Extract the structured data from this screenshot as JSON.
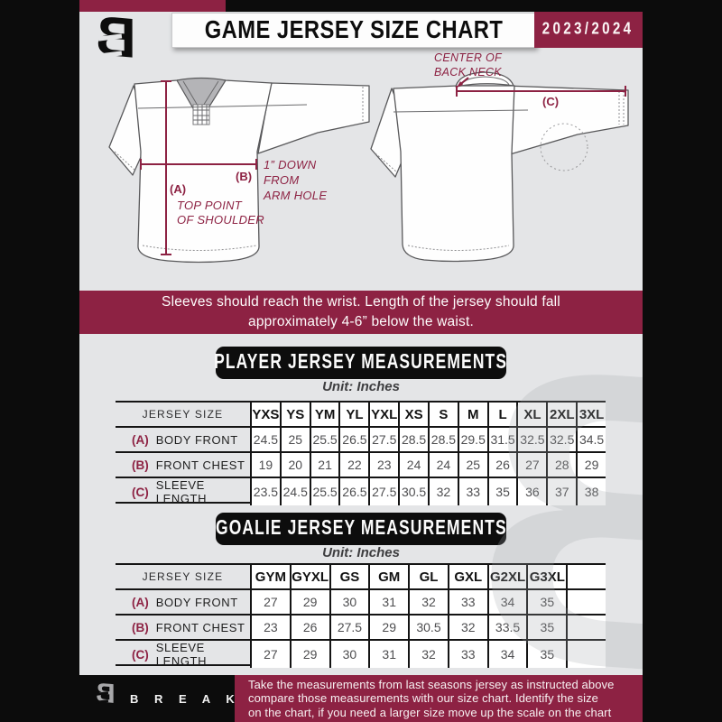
{
  "header": {
    "title": "GAME JERSEY SIZE CHART",
    "season": "2023/2024"
  },
  "logo": {
    "glyph": "B"
  },
  "accent_color": "#8d2243",
  "diagram": {
    "front": {
      "a_label": "(A)",
      "a_caption": [
        "TOP POINT",
        "OF SHOULDER"
      ],
      "b_label": "(B)",
      "b_caption": [
        "1” DOWN",
        "FROM",
        "ARM HOLE"
      ]
    },
    "back": {
      "c_label": "(C)",
      "caption": [
        "CENTER OF",
        "BACK NECK"
      ]
    }
  },
  "note": {
    "line1": "Sleeves should reach the wrist. Length of the jersey should fall",
    "line2": "approximately 4-6” below the waist."
  },
  "player_table": {
    "banner": "PLAYER JERSEY MEASUREMENTS",
    "unit": "Unit: Inches",
    "header_label": "JERSEY SIZE",
    "columns": [
      "YXS",
      "YS",
      "YM",
      "YL",
      "YXL",
      "XS",
      "S",
      "M",
      "L",
      "XL",
      "2XL",
      "3XL"
    ],
    "rows": [
      {
        "key": "(A)",
        "label": "BODY FRONT",
        "values": [
          "24.5",
          "25",
          "25.5",
          "26.5",
          "27.5",
          "28.5",
          "28.5",
          "29.5",
          "31.5",
          "32.5",
          "32.5",
          "34.5"
        ]
      },
      {
        "key": "(B)",
        "label": "FRONT CHEST",
        "values": [
          "19",
          "20",
          "21",
          "22",
          "23",
          "24",
          "24",
          "25",
          "26",
          "27",
          "28",
          "29"
        ]
      },
      {
        "key": "(C)",
        "label": "SLEEVE LENGTH",
        "values": [
          "23.5",
          "24.5",
          "25.5",
          "26.5",
          "27.5",
          "30.5",
          "32",
          "33",
          "35",
          "36",
          "37",
          "38"
        ]
      }
    ]
  },
  "goalie_table": {
    "banner": "GOALIE JERSEY MEASUREMENTS",
    "unit": "Unit: Inches",
    "header_label": "JERSEY SIZE",
    "trailing_empty": true,
    "columns": [
      "GYM",
      "GYXL",
      "GS",
      "GM",
      "GL",
      "GXL",
      "G2XL",
      "G3XL"
    ],
    "rows": [
      {
        "key": "(A)",
        "label": "BODY FRONT",
        "values": [
          "27",
          "29",
          "30",
          "31",
          "32",
          "33",
          "34",
          "35"
        ]
      },
      {
        "key": "(B)",
        "label": "FRONT CHEST",
        "values": [
          "23",
          "26",
          "27.5",
          "29",
          "30.5",
          "32",
          "33.5",
          "35"
        ]
      },
      {
        "key": "(C)",
        "label": "SLEEVE LENGTH",
        "values": [
          "27",
          "29",
          "30",
          "31",
          "32",
          "33",
          "34",
          "35"
        ]
      }
    ]
  },
  "footer": {
    "brand": "B R E A K A W A Y",
    "lines": [
      "Take the measurements from last seasons jersey as instructed above",
      "compare those measurements  with our size chart. Identify the size",
      "on the chart, if you need a larger size move up the scale on the chart"
    ]
  }
}
